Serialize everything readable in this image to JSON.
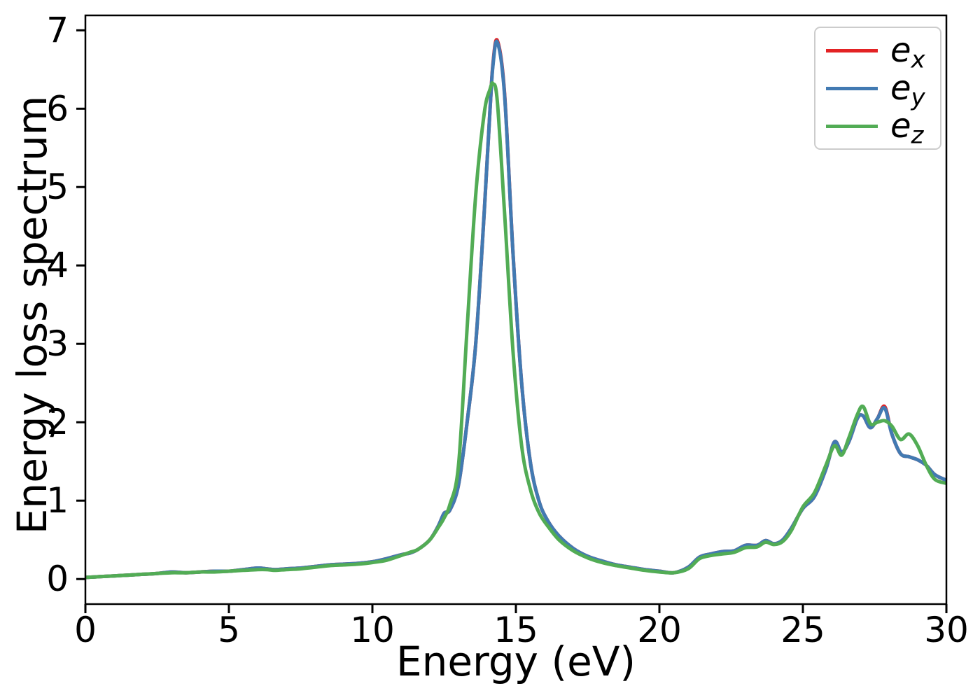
{
  "figure": {
    "background": "#ffffff",
    "axis_color": "#000000"
  },
  "chart_data": {
    "type": "line",
    "title": "",
    "xlabel": "Energy (eV)",
    "ylabel": "Energy loss spectrum",
    "xlim": [
      0,
      30
    ],
    "ylim": [
      -0.32,
      7.19
    ],
    "xticks": [
      0,
      5,
      10,
      15,
      20,
      25,
      30
    ],
    "yticks": [
      0,
      1,
      2,
      3,
      4,
      5,
      6,
      7
    ],
    "grid": false,
    "legend_position": "upper right",
    "x": [
      0,
      0.5,
      1,
      1.5,
      2,
      2.5,
      3,
      3.5,
      4,
      4.5,
      5,
      5.5,
      6,
      6.3,
      6.6,
      7,
      7.5,
      8,
      8.5,
      9,
      9.5,
      10,
      10.5,
      11,
      11.3,
      11.6,
      12,
      12.3,
      12.5,
      12.7,
      13,
      13.3,
      13.6,
      13.9,
      14.1,
      14.2,
      14.35,
      14.6,
      14.9,
      15.2,
      15.5,
      15.8,
      16.1,
      16.5,
      17,
      17.5,
      18,
      18.5,
      19,
      19.5,
      20,
      20.5,
      21,
      21.4,
      21.8,
      22.2,
      22.6,
      23,
      23.4,
      23.7,
      24,
      24.3,
      24.6,
      25,
      25.4,
      25.8,
      26.1,
      26.35,
      26.6,
      26.9,
      27.1,
      27.35,
      27.6,
      27.85,
      28.1,
      28.4,
      28.7,
      29,
      29.3,
      29.6,
      30
    ],
    "series": [
      {
        "name": "ex",
        "label_main": "e",
        "label_sub": "x",
        "color": "#e32224",
        "values": [
          0.02,
          0.03,
          0.04,
          0.05,
          0.06,
          0.07,
          0.09,
          0.08,
          0.09,
          0.1,
          0.1,
          0.12,
          0.14,
          0.13,
          0.12,
          0.13,
          0.14,
          0.16,
          0.18,
          0.19,
          0.2,
          0.22,
          0.26,
          0.31,
          0.33,
          0.38,
          0.5,
          0.68,
          0.84,
          0.88,
          1.2,
          2.0,
          3.0,
          4.7,
          6.0,
          6.57,
          6.87,
          6.22,
          4.15,
          2.5,
          1.5,
          1.0,
          0.75,
          0.55,
          0.39,
          0.29,
          0.23,
          0.18,
          0.15,
          0.12,
          0.1,
          0.08,
          0.15,
          0.28,
          0.32,
          0.35,
          0.36,
          0.43,
          0.43,
          0.49,
          0.45,
          0.5,
          0.65,
          0.9,
          1.05,
          1.4,
          1.75,
          1.62,
          1.75,
          2.05,
          2.08,
          1.93,
          2.05,
          2.2,
          1.85,
          1.6,
          1.56,
          1.52,
          1.45,
          1.33,
          1.26
        ]
      },
      {
        "name": "ey",
        "label_main": "e",
        "label_sub": "y",
        "color": "#427ab2",
        "values": [
          0.02,
          0.03,
          0.04,
          0.05,
          0.06,
          0.07,
          0.09,
          0.08,
          0.09,
          0.1,
          0.1,
          0.12,
          0.14,
          0.13,
          0.12,
          0.13,
          0.14,
          0.16,
          0.18,
          0.19,
          0.2,
          0.22,
          0.26,
          0.31,
          0.33,
          0.38,
          0.5,
          0.68,
          0.84,
          0.88,
          1.2,
          2.0,
          3.0,
          4.7,
          6.0,
          6.55,
          6.85,
          6.2,
          4.15,
          2.5,
          1.5,
          1.0,
          0.75,
          0.55,
          0.39,
          0.29,
          0.23,
          0.18,
          0.15,
          0.12,
          0.1,
          0.08,
          0.15,
          0.28,
          0.32,
          0.35,
          0.36,
          0.43,
          0.43,
          0.49,
          0.45,
          0.5,
          0.65,
          0.9,
          1.05,
          1.4,
          1.75,
          1.62,
          1.75,
          2.05,
          2.08,
          1.93,
          2.05,
          2.18,
          1.85,
          1.6,
          1.56,
          1.52,
          1.45,
          1.33,
          1.26
        ]
      },
      {
        "name": "ez",
        "label_main": "e",
        "label_sub": "z",
        "color": "#52ac55",
        "values": [
          0.02,
          0.03,
          0.04,
          0.05,
          0.06,
          0.07,
          0.08,
          0.08,
          0.09,
          0.09,
          0.1,
          0.11,
          0.12,
          0.12,
          0.11,
          0.12,
          0.13,
          0.15,
          0.17,
          0.18,
          0.19,
          0.21,
          0.24,
          0.3,
          0.34,
          0.38,
          0.5,
          0.66,
          0.78,
          0.95,
          1.45,
          3.2,
          4.9,
          5.95,
          6.25,
          6.32,
          6.1,
          4.7,
          2.9,
          1.7,
          1.15,
          0.85,
          0.68,
          0.5,
          0.36,
          0.27,
          0.21,
          0.17,
          0.14,
          0.11,
          0.09,
          0.08,
          0.13,
          0.26,
          0.3,
          0.32,
          0.34,
          0.4,
          0.41,
          0.47,
          0.44,
          0.48,
          0.62,
          0.92,
          1.1,
          1.45,
          1.7,
          1.58,
          1.8,
          2.1,
          2.2,
          1.98,
          2.0,
          2.02,
          1.95,
          1.78,
          1.85,
          1.7,
          1.45,
          1.27,
          1.22
        ]
      }
    ]
  }
}
